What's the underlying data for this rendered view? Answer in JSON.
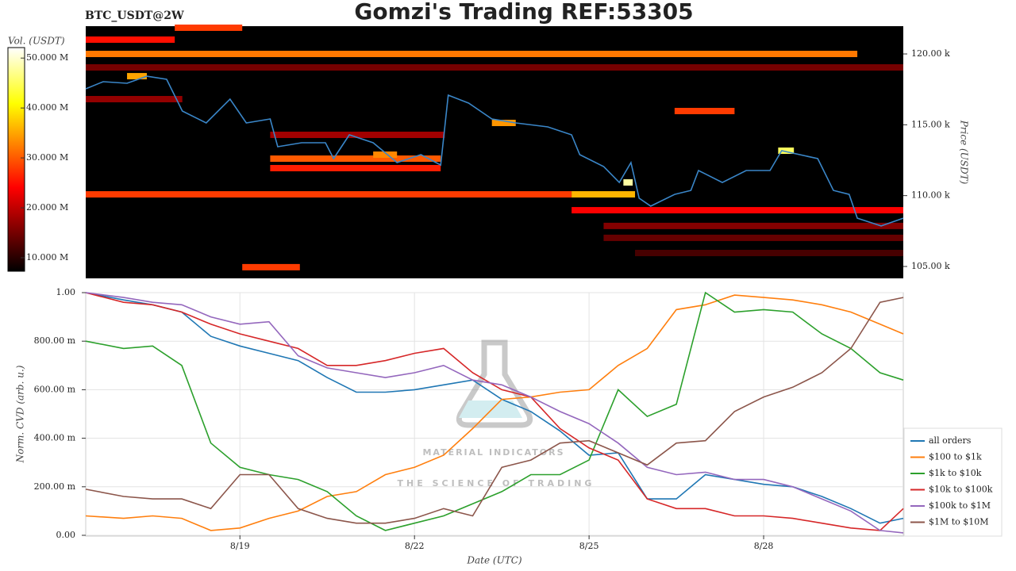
{
  "chart_data": [
    {
      "type": "heatmap",
      "title": "Gomzi's Trading REF:53305",
      "subtitle": "BTC_USDT@2W",
      "ylabel": "Price (USDT)",
      "colorbar_label": "Vol. (USDT)",
      "xlim": [
        16.35,
        30.4
      ],
      "ylim": [
        104160,
        121960
      ],
      "yticks": [
        {
          "value": 105000,
          "label": "105.00 k"
        },
        {
          "value": 110000,
          "label": "110.00 k"
        },
        {
          "value": 115000,
          "label": "115.00 k"
        },
        {
          "value": 120000,
          "label": "120.00 k"
        }
      ],
      "clim": [
        7300000,
        52100000
      ],
      "cticks": [
        {
          "value": 10000000,
          "label": "10.000 M"
        },
        {
          "value": 20000000,
          "label": "20.000 M"
        },
        {
          "value": 30000000,
          "label": "30.000 M"
        },
        {
          "value": 40000000,
          "label": "40.000 M"
        },
        {
          "value": 50000000,
          "label": "50.000 M"
        }
      ],
      "cells": {
        "x0": [
          17.88,
          16.35,
          16.35,
          16.35,
          16.35,
          26.47,
          19.52,
          19.52,
          19.52,
          16.35,
          24.7,
          24.7,
          25.25,
          25.25,
          25.79,
          19.04,
          25.59,
          28.25,
          17.06,
          23.33,
          21.29
        ],
        "x1": [
          19.04,
          17.88,
          29.61,
          30.4,
          18.01,
          27.5,
          22.52,
          22.45,
          22.45,
          24.7,
          25.79,
          30.4,
          30.4,
          30.4,
          30.4,
          20.03,
          25.75,
          28.52,
          17.4,
          23.74,
          21.7
        ],
        "y": [
          121850,
          121010,
          120000,
          119050,
          116810,
          115970,
          114290,
          112610,
          111940,
          110090,
          110090,
          108970,
          107860,
          107020,
          105950,
          104950,
          110930,
          113170,
          118430,
          115130,
          112890
        ],
        "values": [
          28000000,
          25000000,
          32000000,
          15000000,
          17000000,
          28000000,
          18000000,
          30000000,
          26000000,
          28000000,
          36000000,
          24000000,
          16000000,
          14000000,
          12000000,
          28000000,
          48000000,
          45000000,
          35000000,
          34000000,
          33000000
        ]
      },
      "price": {
        "color": "#3a86c8",
        "x": [
          16.35,
          16.65,
          17.06,
          17.4,
          17.74,
          18.01,
          18.42,
          18.83,
          19.11,
          19.52,
          19.65,
          20.06,
          20.47,
          20.61,
          20.88,
          21.29,
          21.7,
          22.11,
          22.45,
          22.58,
          22.93,
          23.33,
          23.74,
          24.29,
          24.7,
          24.84,
          25.25,
          25.52,
          25.72,
          25.86,
          26.06,
          26.47,
          26.75,
          26.88,
          27.29,
          27.7,
          28.11,
          28.31,
          28.93,
          29.2,
          29.47,
          29.61,
          30.02,
          30.4
        ],
        "values": [
          117540,
          118040,
          117930,
          118430,
          118210,
          115970,
          115130,
          116810,
          115130,
          115410,
          113450,
          113730,
          113730,
          112610,
          114290,
          113730,
          112330,
          112890,
          112160,
          117090,
          116530,
          115410,
          115130,
          114850,
          114290,
          112890,
          112050,
          110930,
          112330,
          109820,
          109260,
          110090,
          110370,
          111770,
          110930,
          111770,
          111770,
          113170,
          112610,
          110370,
          110090,
          108410,
          107860,
          108410
        ]
      }
    },
    {
      "type": "line",
      "ylabel": "Norm. CVD (arb. u.)",
      "xlabel": "Date (UTC)",
      "xlim": [
        16.35,
        30.4
      ],
      "xticks": [
        {
          "value": 19,
          "label": "8/19"
        },
        {
          "value": 22,
          "label": "8/22"
        },
        {
          "value": 25,
          "label": "8/25"
        },
        {
          "value": 28,
          "label": "8/28"
        }
      ],
      "ylim": [
        0,
        1
      ],
      "yticks": [
        {
          "value": 0,
          "label": "0.00"
        },
        {
          "value": 0.2,
          "label": "200.00 m"
        },
        {
          "value": 0.4,
          "label": "400.00 m"
        },
        {
          "value": 0.6,
          "label": "600.00 m"
        },
        {
          "value": 0.8,
          "label": "800.00 m"
        },
        {
          "value": 1,
          "label": "1.00"
        }
      ],
      "grid": true,
      "x": [
        16.35,
        17,
        17.5,
        18,
        18.5,
        19,
        19.5,
        20,
        20.5,
        21,
        21.5,
        22,
        22.5,
        23,
        23.5,
        24,
        24.5,
        25,
        25.5,
        26,
        26.5,
        27,
        27.5,
        28,
        28.5,
        29,
        29.5,
        30,
        30.4
      ],
      "series": [
        {
          "name": "all orders",
          "color": "#1f77b4",
          "values": [
            1.0,
            0.97,
            0.95,
            0.92,
            0.82,
            0.78,
            0.75,
            0.72,
            0.65,
            0.59,
            0.59,
            0.6,
            0.62,
            0.64,
            0.56,
            0.51,
            0.43,
            0.33,
            0.34,
            0.15,
            0.15,
            0.25,
            0.23,
            0.21,
            0.2,
            0.16,
            0.11,
            0.05,
            0.07
          ]
        },
        {
          "name": "$100 to $1k",
          "color": "#ff7f0e",
          "values": [
            0.08,
            0.07,
            0.08,
            0.07,
            0.02,
            0.03,
            0.07,
            0.1,
            0.16,
            0.18,
            0.25,
            0.28,
            0.33,
            0.44,
            0.56,
            0.57,
            0.59,
            0.6,
            0.7,
            0.77,
            0.93,
            0.95,
            0.99,
            0.98,
            0.97,
            0.95,
            0.92,
            0.87,
            0.83
          ]
        },
        {
          "name": "$1k to $10k",
          "color": "#2ca02c",
          "values": [
            0.8,
            0.77,
            0.78,
            0.7,
            0.38,
            0.28,
            0.25,
            0.23,
            0.18,
            0.08,
            0.02,
            0.05,
            0.08,
            0.13,
            0.18,
            0.25,
            0.25,
            0.31,
            0.6,
            0.49,
            0.54,
            1.0,
            0.92,
            0.93,
            0.92,
            0.83,
            0.77,
            0.67,
            0.64
          ]
        },
        {
          "name": "$10k to $100k",
          "color": "#d62728",
          "values": [
            1.0,
            0.96,
            0.95,
            0.92,
            0.87,
            0.83,
            0.8,
            0.77,
            0.7,
            0.7,
            0.72,
            0.75,
            0.77,
            0.67,
            0.6,
            0.57,
            0.44,
            0.36,
            0.31,
            0.15,
            0.11,
            0.11,
            0.08,
            0.08,
            0.07,
            0.05,
            0.03,
            0.02,
            0.11
          ]
        },
        {
          "name": "$100k to $1M",
          "color": "#9467bd",
          "values": [
            1.0,
            0.98,
            0.96,
            0.95,
            0.9,
            0.87,
            0.88,
            0.74,
            0.69,
            0.67,
            0.65,
            0.67,
            0.7,
            0.64,
            0.62,
            0.57,
            0.51,
            0.46,
            0.38,
            0.28,
            0.25,
            0.26,
            0.23,
            0.23,
            0.2,
            0.15,
            0.1,
            0.02,
            0.01
          ]
        },
        {
          "name": "$1M to $10M",
          "color": "#8c564b",
          "values": [
            0.19,
            0.16,
            0.15,
            0.15,
            0.11,
            0.25,
            0.25,
            0.11,
            0.07,
            0.05,
            0.05,
            0.07,
            0.11,
            0.08,
            0.28,
            0.31,
            0.38,
            0.39,
            0.34,
            0.29,
            0.38,
            0.39,
            0.51,
            0.57,
            0.61,
            0.67,
            0.77,
            0.96,
            0.98
          ]
        }
      ]
    }
  ],
  "watermark": {
    "brand": "MATERIAL INDICATORS",
    "tagline": "THE SCIENCE OF TRADING"
  }
}
